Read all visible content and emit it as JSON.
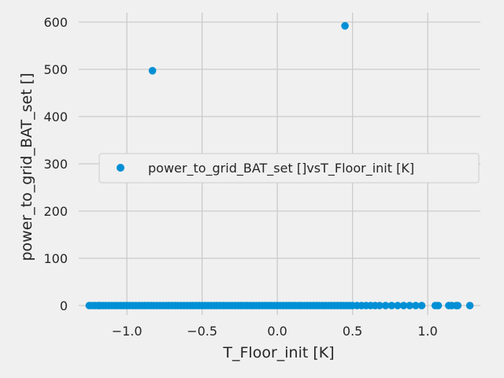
{
  "chart_data": {
    "type": "scatter",
    "title": "",
    "xlabel": "T_Floor_init [K]",
    "ylabel": "power_to_grid_BAT_set []",
    "xlim": [
      -1.32,
      1.35
    ],
    "ylim": [
      -20,
      620
    ],
    "x_ticks": [
      -1.0,
      -0.5,
      0.0,
      0.5,
      1.0
    ],
    "x_tick_labels": [
      "−1.0",
      "−0.5",
      "0.0",
      "0.5",
      "1.0"
    ],
    "y_ticks": [
      0,
      100,
      200,
      300,
      400,
      500,
      600
    ],
    "y_tick_labels": [
      "0",
      "100",
      "200",
      "300",
      "400",
      "500",
      "600"
    ],
    "grid": true,
    "legend_position": "center-right",
    "colors": {
      "series": "#008fd5",
      "grid": "#cbcbcb",
      "background": "#f0f0f0"
    },
    "series": [
      {
        "name": "power_to_grid_BAT_set []vsT_Floor_init [K]",
        "x": [
          -0.83,
          0.45,
          -1.25,
          -1.23,
          -1.21,
          -1.19,
          -1.18,
          -1.16,
          -1.14,
          -1.12,
          -1.1,
          -1.08,
          -1.06,
          -1.04,
          -1.02,
          -1.0,
          -0.98,
          -0.96,
          -0.94,
          -0.92,
          -0.9,
          -0.88,
          -0.86,
          -0.84,
          -0.82,
          -0.8,
          -0.78,
          -0.76,
          -0.74,
          -0.72,
          -0.7,
          -0.68,
          -0.66,
          -0.64,
          -0.62,
          -0.6,
          -0.58,
          -0.56,
          -0.54,
          -0.52,
          -0.5,
          -0.48,
          -0.46,
          -0.44,
          -0.42,
          -0.4,
          -0.38,
          -0.36,
          -0.34,
          -0.32,
          -0.3,
          -0.28,
          -0.26,
          -0.24,
          -0.22,
          -0.2,
          -0.18,
          -0.16,
          -0.14,
          -0.12,
          -0.1,
          -0.08,
          -0.06,
          -0.04,
          -0.02,
          0.0,
          0.02,
          0.04,
          0.06,
          0.08,
          0.1,
          0.12,
          0.14,
          0.16,
          0.18,
          0.2,
          0.22,
          0.24,
          0.26,
          0.28,
          0.3,
          0.32,
          0.34,
          0.36,
          0.38,
          0.4,
          0.42,
          0.44,
          0.46,
          0.48,
          0.5,
          0.53,
          0.56,
          0.59,
          0.62,
          0.65,
          0.68,
          0.72,
          0.76,
          0.8,
          0.84,
          0.88,
          0.92,
          0.96,
          1.05,
          1.07,
          1.14,
          1.16,
          1.19,
          1.2,
          1.28
        ],
        "y": [
          497,
          592,
          0,
          0,
          0,
          0,
          0,
          0,
          0,
          0,
          0,
          0,
          0,
          0,
          0,
          0,
          0,
          0,
          0,
          0,
          0,
          0,
          0,
          0,
          0,
          0,
          0,
          0,
          0,
          0,
          0,
          0,
          0,
          0,
          0,
          0,
          0,
          0,
          0,
          0,
          0,
          0,
          0,
          0,
          0,
          0,
          0,
          0,
          0,
          0,
          0,
          0,
          0,
          0,
          0,
          0,
          0,
          0,
          0,
          0,
          0,
          0,
          0,
          0,
          0,
          0,
          0,
          0,
          0,
          0,
          0,
          0,
          0,
          0,
          0,
          0,
          0,
          0,
          0,
          0,
          0,
          0,
          0,
          0,
          0,
          0,
          0,
          0,
          0,
          0,
          0,
          0,
          0,
          0,
          0,
          0,
          0,
          0,
          0,
          0,
          0,
          0,
          0,
          0,
          0,
          0,
          0,
          0,
          0,
          0,
          0
        ]
      }
    ]
  }
}
